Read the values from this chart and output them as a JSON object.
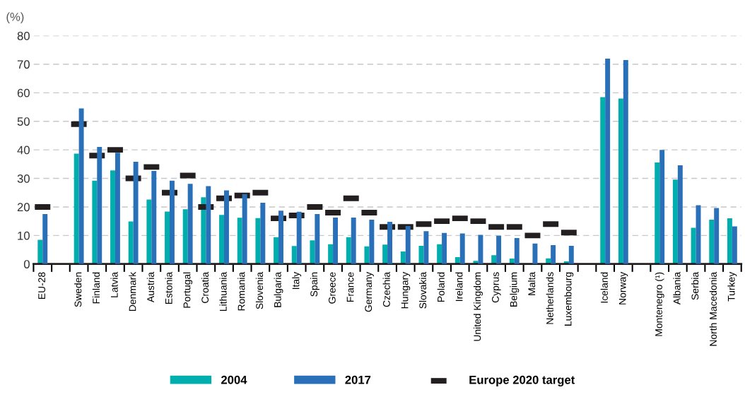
{
  "chart_data": {
    "type": "bar",
    "ylabel": "(%)",
    "categories": [
      "EU-28",
      null,
      "Sweden",
      "Finland",
      "Latvia",
      "Denmark",
      "Austria",
      "Estonia",
      "Portugal",
      "Croatia",
      "Lithuania",
      "Romania",
      "Slovenia",
      "Bulgaria",
      "Italy",
      "Spain",
      "Greece",
      "France",
      "Germany",
      "Czechia",
      "Hungary",
      "Slovakia",
      "Poland",
      "Ireland",
      "United Kingdom",
      "Cyprus",
      "Belgium",
      "Malta",
      "Netherlands",
      "Luxembourg",
      null,
      "Iceland",
      "Norway",
      null,
      "Montenegro (¹)",
      "Albania",
      "Serbia",
      "North Macedonia",
      "Turkey"
    ],
    "series": [
      {
        "name": "2004",
        "color": "#00aeae",
        "type": "bar",
        "values": [
          8.5,
          null,
          38.7,
          29.2,
          32.8,
          14.9,
          22.6,
          18.4,
          19.2,
          23.4,
          17.2,
          16.2,
          16.1,
          9.4,
          6.3,
          8.3,
          6.9,
          9.4,
          6.2,
          6.8,
          4.4,
          6.4,
          6.9,
          2.4,
          1.1,
          3.1,
          1.9,
          null,
          2.0,
          0.9,
          null,
          58.5,
          58.0,
          null,
          35.6,
          29.6,
          12.7,
          15.5,
          16.0
        ]
      },
      {
        "name": "2017",
        "color": "#2970b9",
        "type": "bar",
        "values": [
          17.5,
          null,
          54.5,
          41.0,
          39.0,
          35.8,
          32.6,
          29.2,
          28.1,
          27.3,
          25.8,
          24.5,
          21.5,
          18.7,
          18.3,
          17.5,
          16.3,
          16.3,
          15.5,
          14.8,
          13.3,
          11.5,
          10.9,
          10.7,
          10.2,
          9.9,
          9.1,
          7.2,
          6.6,
          6.4,
          null,
          72.0,
          71.5,
          null,
          40.0,
          34.6,
          20.6,
          19.6,
          13.2
        ]
      },
      {
        "name": "Europe 2020 target",
        "color": "#231f20",
        "type": "scatter",
        "values": [
          20,
          null,
          49,
          38,
          40,
          30,
          34,
          25,
          31,
          20,
          23,
          24,
          25,
          16,
          17,
          20,
          18,
          23,
          18,
          13,
          13,
          14,
          15,
          16,
          15,
          13,
          13,
          10,
          14,
          11,
          null,
          null,
          null,
          null,
          null,
          null,
          null,
          null,
          null
        ]
      }
    ],
    "ylim": [
      0,
      80
    ],
    "yticks": [
      0,
      10,
      20,
      30,
      40,
      50,
      60,
      70,
      80
    ],
    "grid": "y",
    "legend": "bottom"
  }
}
